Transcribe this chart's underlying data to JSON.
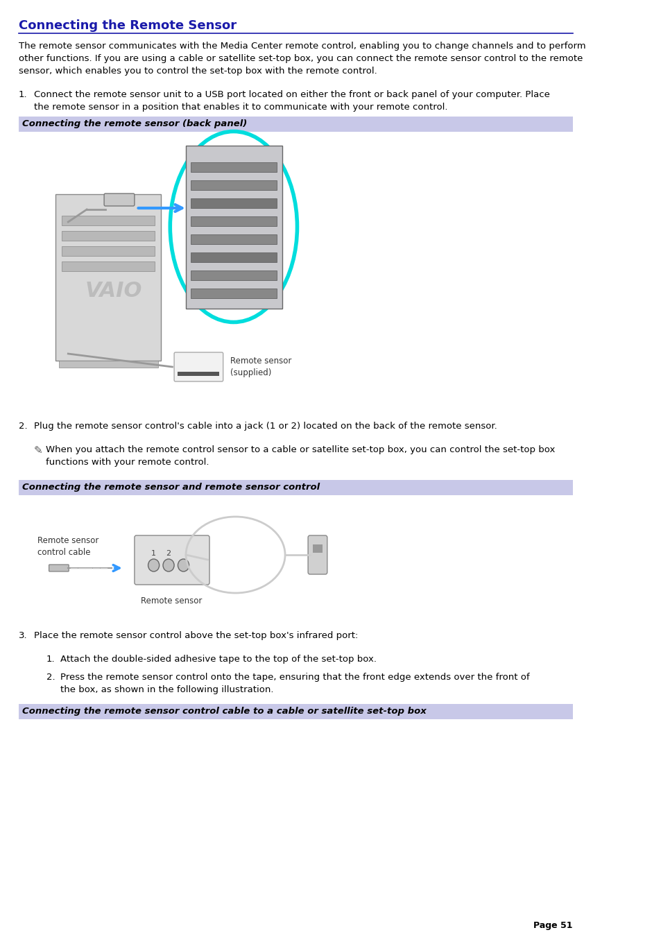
{
  "title": "Connecting the Remote Sensor",
  "title_color": "#1a1aaa",
  "title_fontsize": 13,
  "bg_color": "#ffffff",
  "body_text_color": "#000000",
  "body_fontsize": 9.5,
  "intro_text": "The remote sensor communicates with the Media Center remote control, enabling you to change channels and to perform\nother functions. If you are using a cable or satellite set-top box, you can connect the remote sensor control to the remote\nsensor, which enables you to control the set-top box with the remote control.",
  "step1_text": "Connect the remote sensor unit to a USB port located on either the front or back panel of your computer. Place\nthe remote sensor in a position that enables it to communicate with your remote control.",
  "caption1": "Connecting the remote sensor (back panel)",
  "caption1_color": "#000000",
  "caption1_bg": "#c8c8e8",
  "step2_text": "Plug the remote sensor control's cable into a jack (1 or 2) located on the back of the remote sensor.",
  "note_text": "When you attach the remote control sensor to a cable or satellite set-top box, you can control the set-top box\nfunctions with your remote control.",
  "caption2": "Connecting the remote sensor and remote sensor control",
  "caption2_color": "#000000",
  "caption2_bg": "#c8c8e8",
  "step3_text": "Place the remote sensor control above the set-top box's infrared port:",
  "step3a_text": "Attach the double-sided adhesive tape to the top of the set-top box.",
  "step3b_text": "Press the remote sensor control onto the tape, ensuring that the front edge extends over the front of\nthe box, as shown in the following illustration.",
  "caption3": "Connecting the remote sensor control cable to a cable or satellite set-top box",
  "caption3_color": "#000000",
  "caption3_bg": "#c8c8e8",
  "page_text": "Page 51",
  "page_fontsize": 9,
  "line_color": "#1a1aaa"
}
